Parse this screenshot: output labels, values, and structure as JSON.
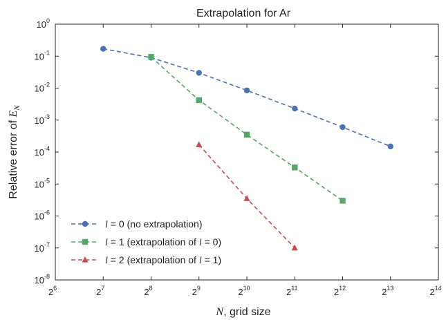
{
  "chart_data": {
    "type": "line",
    "title": "Extrapolation for Ar",
    "xlabel": {
      "italic": "N",
      "rest": ", grid size"
    },
    "ylabel": {
      "text": "Relative error of ",
      "symbol": "E",
      "subscript": "N"
    },
    "x_scale": "log2",
    "y_scale": "log10",
    "xlim": [
      64,
      16384
    ],
    "ylim": [
      1e-08,
      1
    ],
    "x_tick_exponents": [
      "6",
      "7",
      "8",
      "9",
      "10",
      "11",
      "12",
      "13",
      "14"
    ],
    "y_tick_exponents": [
      "0",
      "-1",
      "-2",
      "-3",
      "-4",
      "-5",
      "-6",
      "-7",
      "-8"
    ],
    "x_tick_base": "2",
    "y_tick_base": "10",
    "grid": false,
    "legend_position": "lower-left",
    "series": [
      {
        "name": "l = 0 (no extrapolation)",
        "legend_parts": {
          "l": "l",
          "eq": " = 0",
          "rest": " (no extrapolation)"
        },
        "color": "#4c72b0",
        "marker": "circle",
        "x": [
          128,
          256,
          512,
          1024,
          2048,
          4096,
          8192
        ],
        "y": [
          0.17,
          0.09,
          0.03,
          0.0085,
          0.0023,
          0.0006,
          0.00015
        ]
      },
      {
        "name": "l = 1 (extrapolation of l = 0)",
        "legend_parts": {
          "l": "l",
          "eq": " = 1",
          "rest": " (extrapolation of ",
          "l2": "l",
          "eq2": " = 0)"
        },
        "color": "#55a868",
        "marker": "square",
        "x": [
          256,
          512,
          1024,
          2048,
          4096
        ],
        "y": [
          0.095,
          0.0042,
          0.00035,
          3.3e-05,
          3e-06
        ]
      },
      {
        "name": "l = 2 (extrapolation of l = 1)",
        "legend_parts": {
          "l": "l",
          "eq": " = 2",
          "rest": " (extrapolation of ",
          "l2": "l",
          "eq2": " = 1)"
        },
        "color": "#c44e52",
        "marker": "triangle",
        "x": [
          512,
          1024,
          2048
        ],
        "y": [
          0.00017,
          3.5e-06,
          1e-07
        ]
      }
    ]
  }
}
